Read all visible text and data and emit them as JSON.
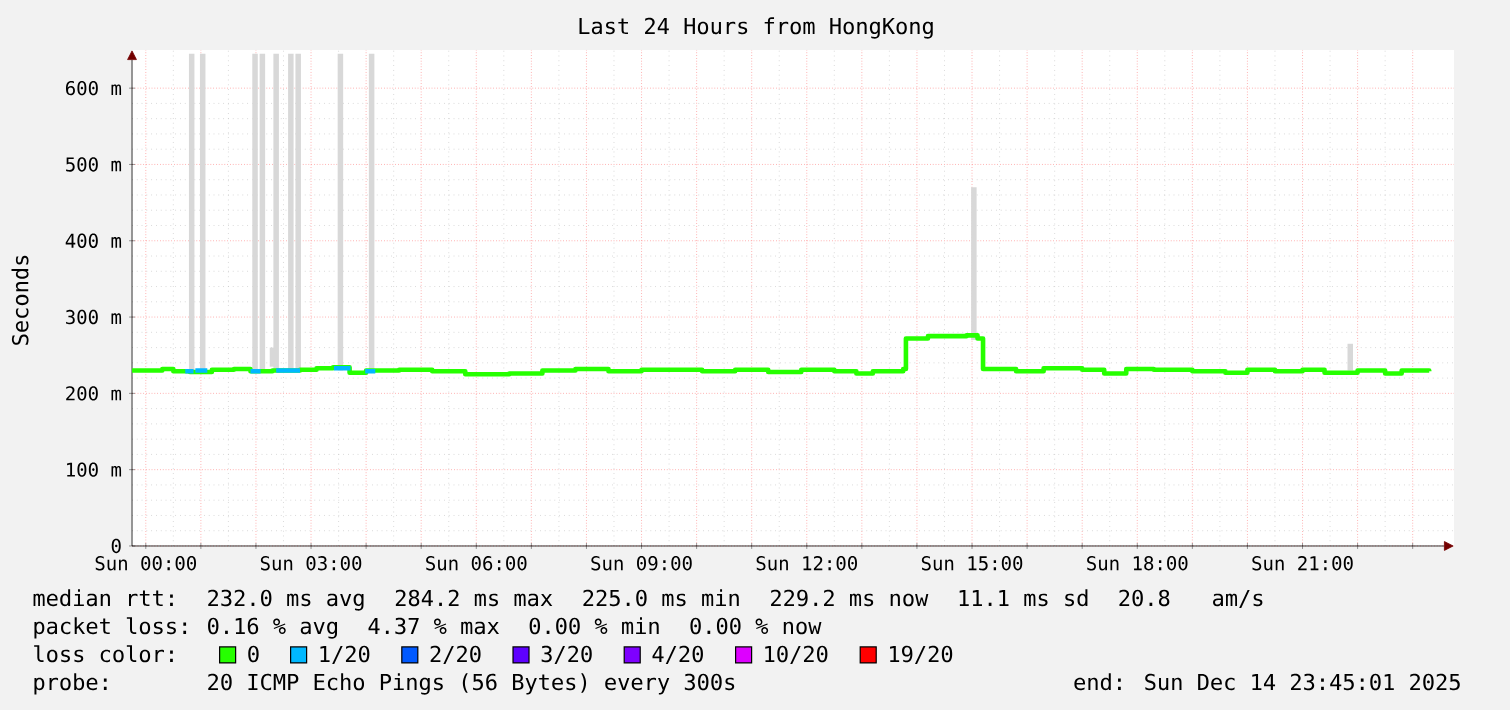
{
  "chart_data": {
    "type": "step",
    "title": "Last 24 Hours from HongKong",
    "ylabel": "Seconds",
    "legend_title": "loss color:",
    "legend": "bottom",
    "grid": true,
    "xlim": [
      "2025-12-13T23:45",
      "2025-12-14T23:45"
    ],
    "ylim": [
      0,
      650
    ],
    "xticks": [
      {
        "value": "2025-12-14T00:00",
        "label": "Sun 00:00"
      },
      {
        "value": "2025-12-14T01:00",
        "label": null
      },
      {
        "value": "2025-12-14T02:00",
        "label": null
      },
      {
        "value": "2025-12-14T03:00",
        "label": "Sun 03:00"
      },
      {
        "value": "2025-12-14T04:00",
        "label": null
      },
      {
        "value": "2025-12-14T05:00",
        "label": null
      },
      {
        "value": "2025-12-14T06:00",
        "label": "Sun 06:00"
      },
      {
        "value": "2025-12-14T07:00",
        "label": null
      },
      {
        "value": "2025-12-14T08:00",
        "label": null
      },
      {
        "value": "2025-12-14T09:00",
        "label": "Sun 09:00"
      },
      {
        "value": "2025-12-14T10:00",
        "label": null
      },
      {
        "value": "2025-12-14T11:00",
        "label": null
      },
      {
        "value": "2025-12-14T12:00",
        "label": "Sun 12:00"
      },
      {
        "value": "2025-12-14T13:00",
        "label": null
      },
      {
        "value": "2025-12-14T14:00",
        "label": null
      },
      {
        "value": "2025-12-14T15:00",
        "label": "Sun 15:00"
      },
      {
        "value": "2025-12-14T16:00",
        "label": null
      },
      {
        "value": "2025-12-14T17:00",
        "label": null
      },
      {
        "value": "2025-12-14T18:00",
        "label": "Sun 18:00"
      },
      {
        "value": "2025-12-14T19:00",
        "label": null
      },
      {
        "value": "2025-12-14T20:00",
        "label": null
      },
      {
        "value": "2025-12-14T21:00",
        "label": "Sun 21:00"
      },
      {
        "value": "2025-12-14T22:00",
        "label": null
      },
      {
        "value": "2025-12-14T23:00",
        "label": null
      }
    ],
    "yticks": [
      0,
      {
        "value": 100,
        "label": "100 m"
      },
      {
        "value": 200,
        "label": "200 m"
      },
      {
        "value": 300,
        "label": "300 m"
      },
      {
        "value": 400,
        "label": "400 m"
      },
      {
        "value": 500,
        "label": "500 m"
      },
      {
        "value": 600,
        "label": "600 m"
      }
    ],
    "series": [
      {
        "type": "bar",
        "color": "#d8d8d8",
        "x": [
          "2025-12-14T00:50",
          "2025-12-14T01:02",
          "2025-12-14T01:59",
          "2025-12-14T02:07",
          "2025-12-14T02:18",
          "2025-12-14T02:22",
          "2025-12-14T02:38",
          "2025-12-14T02:46",
          "2025-12-14T03:32",
          "2025-12-14T04:06",
          "2025-12-14T15:02",
          "2025-12-14T21:52"
        ],
        "base": [
          230,
          230,
          230,
          230,
          235,
          230,
          230,
          230,
          230,
          230,
          270,
          230
        ],
        "values": [
          415,
          415,
          415,
          415,
          25,
          415,
          415,
          415,
          415,
          415,
          200,
          35
        ]
      },
      {
        "name": "0",
        "color": "#26ff00",
        "x": [
          "2025-12-13T23:45",
          "2025-12-14T00:18",
          "2025-12-14T00:30",
          "2025-12-14T00:48",
          "2025-12-14T01:12",
          "2025-12-14T01:36",
          "2025-12-14T01:54",
          "2025-12-14T02:18",
          "2025-12-14T02:48",
          "2025-12-14T03:06",
          "2025-12-14T03:24",
          "2025-12-14T03:42",
          "2025-12-14T04:00",
          "2025-12-14T04:36",
          "2025-12-14T05:12",
          "2025-12-14T05:48",
          "2025-12-14T06:36",
          "2025-12-14T07:12",
          "2025-12-14T07:48",
          "2025-12-14T08:24",
          "2025-12-14T09:00",
          "2025-12-14T09:36",
          "2025-12-14T10:06",
          "2025-12-14T10:42",
          "2025-12-14T11:18",
          "2025-12-14T11:54",
          "2025-12-14T12:30",
          "2025-12-14T12:54",
          "2025-12-14T13:12",
          "2025-12-14T13:45",
          "2025-12-14T13:48",
          "2025-12-14T14:12",
          "2025-12-14T14:54",
          "2025-12-14T15:06",
          "2025-12-14T15:12",
          "2025-12-14T15:48",
          "2025-12-14T16:18",
          "2025-12-14T17:00",
          "2025-12-14T17:24",
          "2025-12-14T17:48",
          "2025-12-14T18:18",
          "2025-12-14T19:00",
          "2025-12-14T19:36",
          "2025-12-14T20:00",
          "2025-12-14T20:30",
          "2025-12-14T21:00",
          "2025-12-14T21:24",
          "2025-12-14T22:00",
          "2025-12-14T22:30",
          "2025-12-14T22:48",
          "2025-12-14T23:18"
        ],
        "values": [
          230,
          232,
          229,
          228,
          231,
          232,
          229,
          230,
          231,
          233,
          234,
          227,
          230,
          231,
          229,
          225,
          226,
          230,
          232,
          229,
          231,
          231,
          229,
          231,
          228,
          231,
          229,
          226,
          229,
          232,
          272,
          275,
          276,
          272,
          232,
          229,
          233,
          231,
          226,
          232,
          231,
          229,
          227,
          231,
          229,
          231,
          227,
          230,
          226,
          230,
          229
        ]
      },
      {
        "name": "1/20",
        "color": "#00b8ff",
        "x": [
          "2025-12-14T00:43",
          "2025-12-14T00:52",
          "2025-12-14T00:53",
          "2025-12-14T00:54",
          "2025-12-14T01:07",
          "2025-12-14T01:30",
          "2025-12-14T01:54",
          "2025-12-14T02:05",
          "2025-12-14T02:12",
          "2025-12-14T02:22",
          "2025-12-14T02:48",
          "2025-12-14T03:00",
          "2025-12-14T03:25",
          "2025-12-14T03:43",
          "2025-12-14T03:48",
          "2025-12-14T03:59",
          "2025-12-14T04:10"
        ],
        "values": [
          229,
          229,
          null,
          230,
          230,
          null,
          229,
          229,
          null,
          230,
          230,
          null,
          233,
          233,
          null,
          229,
          229
        ]
      },
      {
        "name": "2/20",
        "color": "#0059ff"
      },
      {
        "name": "3/20",
        "color": "#5e00ff"
      },
      {
        "name": "4/20",
        "color": "#7e00ff"
      },
      {
        "name": "10/20",
        "color": "#dd00ff"
      },
      {
        "name": "19/20",
        "color": "#ff0000"
      }
    ],
    "annotations": [
      "median rtt:",
      "232.0 ms avg",
      "284.2 ms max",
      "225.0 ms min",
      "229.2 ms now",
      "11.1 ms sd",
      "20.8",
      "am/s",
      "packet loss:",
      "0.16 % avg",
      "4.37 % max",
      "0.00 % min",
      "0.00 % now",
      "probe:",
      "20 ICMP Echo Pings (56 Bytes) every 300s",
      "end: Sun Dec 14 23:45:01 2025"
    ]
  }
}
